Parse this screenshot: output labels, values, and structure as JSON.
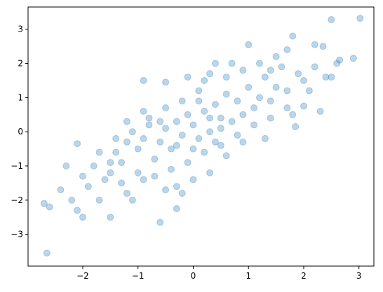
{
  "chart_data": {
    "type": "scatter",
    "color": "#1f77b4",
    "alpha": 0.3,
    "xlim": [
      -2.99,
      3.27
    ],
    "ylim": [
      -3.93,
      3.65
    ],
    "xticks": [
      {
        "value": -2,
        "label": "−2"
      },
      {
        "value": -1,
        "label": "−1"
      },
      0,
      1,
      2,
      3
    ],
    "yticks": [
      {
        "value": -3,
        "label": "−3"
      },
      {
        "value": -2,
        "label": "−2"
      },
      {
        "value": -1,
        "label": "−1"
      },
      0,
      1,
      2,
      3
    ],
    "x": [
      -2.65,
      3.02,
      2.5,
      1.8,
      -0.6,
      -2.7,
      -2.6,
      2.9,
      2.65,
      -0.3,
      -1.5,
      -2.1,
      -2.3,
      -0.9,
      -0.5,
      1.0,
      2.2,
      2.35,
      2.6,
      2.4,
      2.5,
      1.8,
      1.85,
      2.3,
      2.0,
      -0.2,
      -0.5,
      -1.1,
      -1.7,
      -2.0,
      -2.1,
      -1.9,
      -1.5,
      -1.4,
      -1.3,
      -1.2,
      -1.0,
      -0.9,
      -0.8,
      -0.7,
      -0.6,
      -0.5,
      -0.4,
      -0.3,
      -0.2,
      -0.1,
      0.0,
      0.1,
      0.2,
      0.3,
      0.4,
      0.5,
      0.6,
      0.7,
      0.8,
      0.9,
      1.0,
      1.1,
      1.2,
      1.3,
      1.4,
      1.5,
      1.6,
      1.7,
      1.9,
      2.0,
      2.1,
      1.5,
      1.2,
      0.9,
      0.6,
      0.3,
      0.1,
      -0.2,
      -0.5,
      -0.8,
      -1.1,
      -1.4,
      -1.7,
      -2.0,
      -1.8,
      -1.6,
      -1.3,
      -1.0,
      -0.7,
      -0.4,
      -0.1,
      0.2,
      0.5,
      0.8,
      1.1,
      1.4,
      1.7,
      0.6,
      0.3,
      0.0,
      -0.3,
      0.9,
      1.3,
      0.7,
      0.2,
      -0.1,
      0.4,
      1.7,
      1.4,
      2.2,
      -2.4,
      -2.2,
      -1.2,
      -0.9,
      0.0,
      0.1,
      0.3,
      0.5,
      0.4,
      -0.3,
      -0.6,
      -0.9,
      -1.2,
      -1.5
    ],
    "y": [
      -3.55,
      3.32,
      3.28,
      2.8,
      -2.65,
      -2.1,
      -2.2,
      2.15,
      2.1,
      -2.25,
      -2.5,
      -0.35,
      -1.0,
      1.5,
      1.45,
      2.55,
      2.55,
      2.5,
      2.0,
      1.6,
      1.6,
      0.5,
      0.15,
      0.6,
      0.75,
      -1.8,
      -1.7,
      -2.0,
      -2.0,
      -2.5,
      -2.3,
      -1.6,
      -1.2,
      -0.6,
      -0.9,
      -0.3,
      -0.5,
      -0.2,
      0.2,
      -0.8,
      -0.3,
      0.1,
      -0.5,
      0.3,
      -0.1,
      0.5,
      0.2,
      -0.2,
      0.6,
      0.0,
      0.8,
      0.4,
      1.1,
      0.3,
      0.9,
      0.5,
      1.3,
      0.7,
      1.0,
      1.6,
      0.9,
      1.3,
      1.9,
      1.2,
      1.7,
      1.5,
      1.2,
      2.2,
      2.0,
      1.8,
      1.6,
      1.7,
      1.2,
      0.9,
      0.7,
      0.4,
      0.0,
      -0.2,
      -0.6,
      -1.3,
      -1.0,
      -1.4,
      -1.5,
      -1.2,
      -1.3,
      -1.1,
      -0.9,
      -0.6,
      -0.4,
      -0.1,
      0.2,
      0.4,
      0.7,
      -0.7,
      -1.2,
      -1.4,
      -1.6,
      -0.3,
      -0.2,
      2.0,
      1.5,
      1.6,
      2.0,
      2.4,
      1.8,
      1.9,
      -1.7,
      -2.0,
      -1.8,
      -1.4,
      -0.5,
      0.9,
      0.4,
      0.1,
      -0.3,
      -0.4,
      0.3,
      0.6,
      0.3,
      -0.9
    ]
  }
}
